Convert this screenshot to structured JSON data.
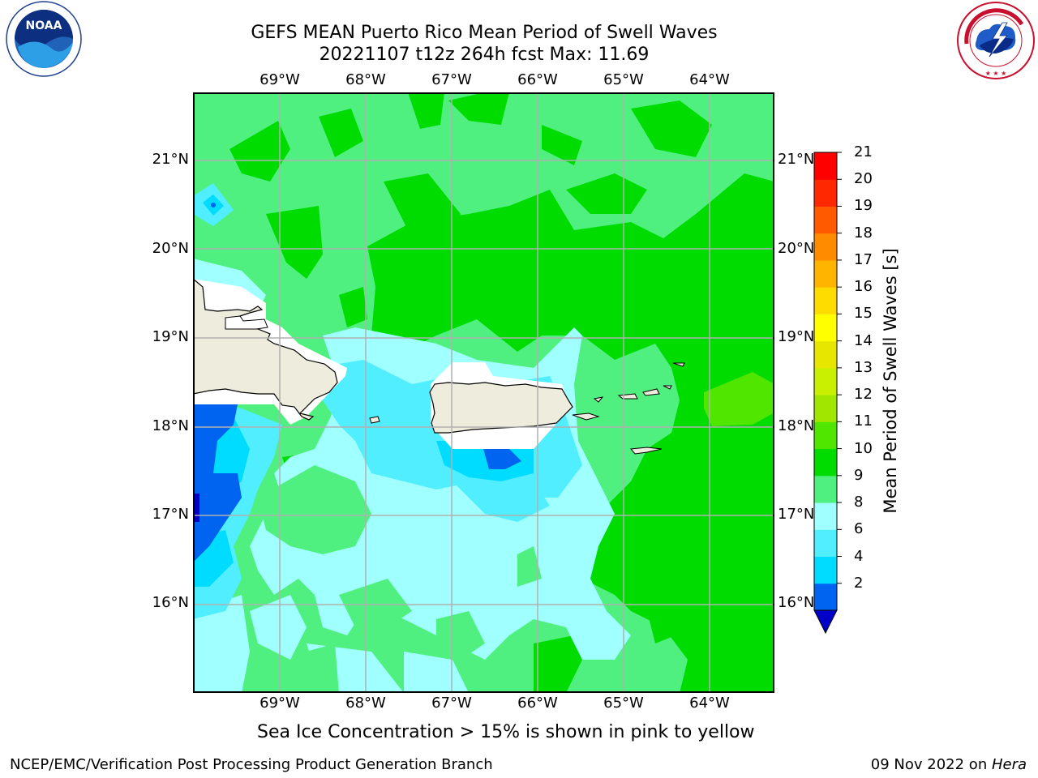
{
  "title": {
    "line1": "GEFS MEAN Puerto Rico Mean Period of Swell Waves",
    "line2": "20221107 t12z 264h fcst   Max: 11.69"
  },
  "logos": {
    "left": "NOAA",
    "left_ring_text": "NATIONAL OCEANIC AND ATMOSPHERIC ADMINISTRATION · U.S. DEPARTMENT OF COMMERCE",
    "right_ring_text": "NATIONAL WEATHER SERVICE"
  },
  "map": {
    "lon_labels": [
      "69°W",
      "68°W",
      "67°W",
      "66°W",
      "65°W",
      "64°W"
    ],
    "lat_labels": [
      "21°N",
      "20°N",
      "19°N",
      "18°N",
      "17°N",
      "16°N"
    ],
    "lon_range": [
      -70.0,
      -63.25
    ],
    "lat_range": [
      15.0,
      21.75
    ],
    "land_color": "#eeecdc",
    "grid_color": "#b0b0b0"
  },
  "colorbar": {
    "label": "Mean Period of Swell Waves [s]",
    "ticks": [
      "21",
      "20",
      "19",
      "18",
      "17",
      "16",
      "15",
      "14",
      "13",
      "12",
      "11",
      "10",
      "9",
      "8",
      "6",
      "4",
      "2"
    ],
    "colors": [
      "#0000c8",
      "#0064f0",
      "#00dcff",
      "#50eeff",
      "#a0ffff",
      "#50f080",
      "#00dc00",
      "#50e600",
      "#a0e600",
      "#c8f000",
      "#e6e600",
      "#ffff00",
      "#ffdc00",
      "#ffb400",
      "#ff8c00",
      "#ff5a00",
      "#ff2800",
      "#ff0000"
    ]
  },
  "chart_data": {
    "type": "heatmap",
    "title": "GEFS MEAN Puerto Rico Mean Period of Swell Waves",
    "subtitle": "20221107 t12z 264h fcst   Max: 11.69",
    "xlabel": "",
    "ylabel": "",
    "colorbar_label": "Mean Period of Swell Waves [s]",
    "xlim": [
      -70.0,
      -63.25
    ],
    "ylim": [
      15.0,
      21.75
    ],
    "levels": [
      2,
      4,
      6,
      7,
      8,
      9,
      10,
      11,
      12,
      13,
      14,
      15,
      16,
      17,
      18,
      19,
      20,
      21
    ],
    "max": 11.69,
    "regions": [
      {
        "area": "north of 19.5°N",
        "period_s": "9-11"
      },
      {
        "area": "east of 65.5°W",
        "period_s": "10-11"
      },
      {
        "area": "near 63.5°W 18.3°N",
        "period_s": "11-12"
      },
      {
        "area": "Caribbean south of Puerto Rico",
        "period_s": "6-9"
      },
      {
        "area": "southwest near 69.5°W 17.5°N",
        "period_s": "2-6"
      }
    ]
  },
  "note": "Sea Ice Concentration > 15% is shown in pink to yellow",
  "footer": {
    "left": "NCEP/EMC/Verification Post Processing Product Generation Branch",
    "date": "09 Nov 2022 on ",
    "machine": "Hera"
  }
}
